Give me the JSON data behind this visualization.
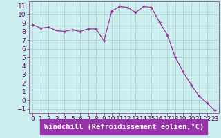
{
  "x": [
    0,
    1,
    2,
    3,
    4,
    5,
    6,
    7,
    8,
    9,
    10,
    11,
    12,
    13,
    14,
    15,
    16,
    17,
    18,
    19,
    20,
    21,
    22,
    23
  ],
  "y": [
    8.8,
    8.4,
    8.5,
    8.1,
    8.0,
    8.2,
    8.0,
    8.3,
    8.3,
    6.9,
    10.4,
    10.9,
    10.8,
    10.2,
    10.9,
    10.8,
    9.1,
    7.6,
    5.0,
    3.3,
    1.8,
    0.5,
    -0.3,
    -1.2
  ],
  "line_color": "#993399",
  "marker": "+",
  "marker_size": 3,
  "bg_color": "#cceeee",
  "grid_color": "#aacccc",
  "xlabel": "Windchill (Refroidissement éolien,°C)",
  "xlim": [
    -0.5,
    23.5
  ],
  "ylim": [
    -1.5,
    11.5
  ],
  "yticks": [
    -1,
    0,
    1,
    2,
    3,
    4,
    5,
    6,
    7,
    8,
    9,
    10,
    11
  ],
  "xticks": [
    0,
    1,
    2,
    3,
    4,
    5,
    6,
    7,
    8,
    9,
    10,
    11,
    12,
    13,
    14,
    15,
    16,
    17,
    18,
    19,
    20,
    21,
    22,
    23
  ],
  "xlabel_fontsize": 7.5,
  "tick_fontsize": 6.5,
  "label_color": "#660066",
  "axis_label_bg": "#9933aa",
  "xlabel_color": "white"
}
